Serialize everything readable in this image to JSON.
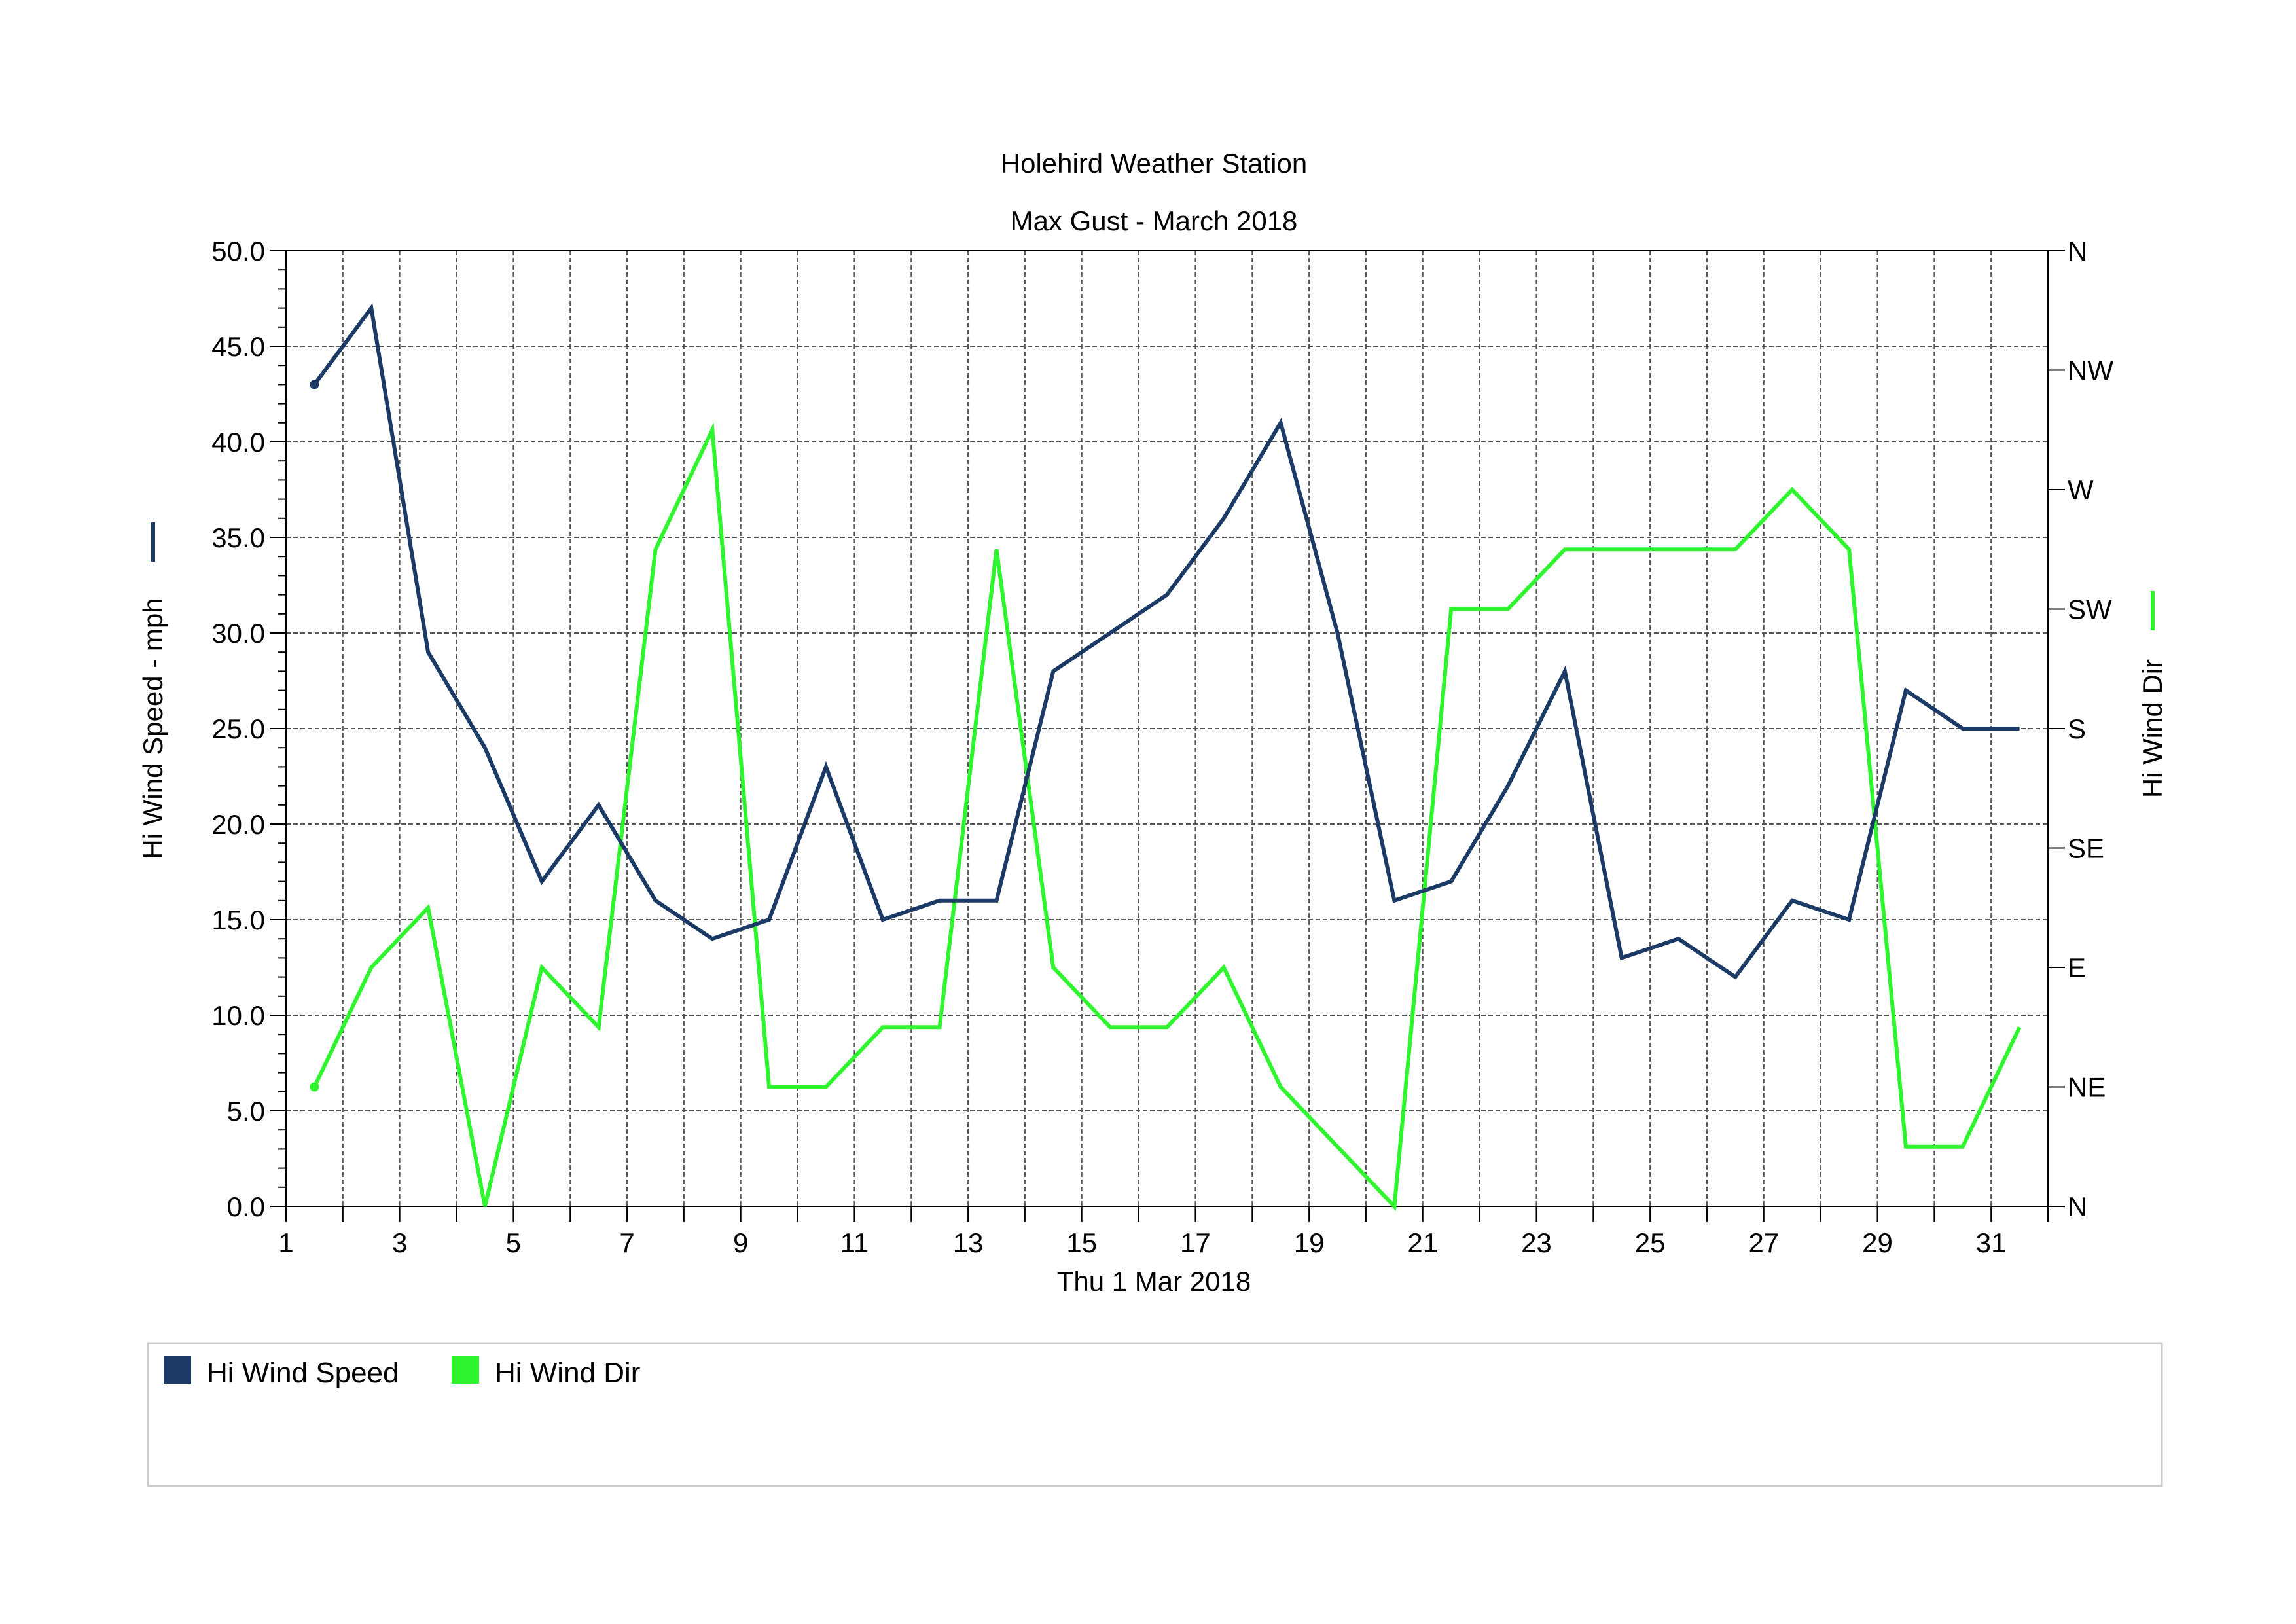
{
  "title": "Holehird Weather Station",
  "subtitle": "Max Gust - March 2018",
  "colors": {
    "speed": "#1b3a66",
    "direction": "#2ef52e",
    "grid": "#555555",
    "axis": "#000000",
    "legend_border": "#cccccc"
  },
  "chart_data": {
    "type": "line",
    "title": "Holehird Weather Station",
    "subtitle": "Max Gust - March 2018",
    "xlabel": "Thu 1 Mar 2018",
    "ylabel_left": "Hi Wind Speed - mph",
    "ylabel_right": "Hi Wind Dir",
    "xlim": [
      1,
      32
    ],
    "x_tick_labels": [
      "1",
      "3",
      "5",
      "7",
      "9",
      "11",
      "13",
      "15",
      "17",
      "19",
      "21",
      "23",
      "25",
      "27",
      "29",
      "31"
    ],
    "x_tick_values": [
      1,
      3,
      5,
      7,
      9,
      11,
      13,
      15,
      17,
      19,
      21,
      23,
      25,
      27,
      29,
      31
    ],
    "ylim_left": [
      0,
      50
    ],
    "y_left_tick_labels": [
      "0.0",
      "5.0",
      "10.0",
      "15.0",
      "20.0",
      "25.0",
      "30.0",
      "35.0",
      "40.0",
      "45.0",
      "50.0"
    ],
    "ylim_right_degrees": [
      0,
      360
    ],
    "y_right_tick_labels": [
      "N",
      "NE",
      "E",
      "SE",
      "S",
      "SW",
      "W",
      "NW",
      "N"
    ],
    "grid": true,
    "legend_position": "bottom",
    "series": [
      {
        "name": "Hi Wind Speed",
        "axis": "left",
        "unit": "mph",
        "x": [
          1.5,
          2.5,
          3.5,
          4.5,
          5.5,
          6.5,
          7.5,
          8.5,
          9.5,
          10.5,
          11.5,
          12.5,
          13.5,
          14.5,
          15.5,
          16.5,
          17.5,
          18.5,
          19.5,
          20.5,
          21.5,
          22.5,
          23.5,
          24.5,
          25.5,
          26.5,
          27.5,
          28.5,
          29.5,
          30.5,
          31.5
        ],
        "values": [
          43,
          47,
          29,
          24,
          17,
          21,
          16,
          14,
          15,
          23,
          15,
          16,
          16,
          28,
          30,
          32,
          36,
          41,
          30,
          16,
          17,
          22,
          28,
          13,
          14,
          12,
          16,
          15,
          27,
          25,
          25
        ]
      },
      {
        "name": "Hi Wind Dir",
        "axis": "right",
        "unit": "degrees",
        "x": [
          1.5,
          2.5,
          3.5,
          4.5,
          5.5,
          6.5,
          7.5,
          8.5,
          9.5,
          10.5,
          11.5,
          12.5,
          13.5,
          14.5,
          15.5,
          16.5,
          17.5,
          18.5,
          19.5,
          20.5,
          21.5,
          22.5,
          23.5,
          24.5,
          25.5,
          26.5,
          27.5,
          28.5,
          29.5,
          30.5,
          31.5
        ],
        "values": [
          45,
          90,
          112.5,
          0,
          90,
          67.5,
          247.5,
          292.5,
          45,
          45,
          67.5,
          67.5,
          247.5,
          90,
          67.5,
          67.5,
          90,
          45,
          22.5,
          0,
          225,
          225,
          247.5,
          247.5,
          247.5,
          247.5,
          270,
          247.5,
          22.5,
          22.5,
          67.5
        ]
      }
    ]
  },
  "legend": {
    "items": [
      {
        "label": "Hi Wind Speed",
        "color": "#1b3a66"
      },
      {
        "label": "Hi Wind Dir",
        "color": "#2ef52e"
      }
    ]
  }
}
